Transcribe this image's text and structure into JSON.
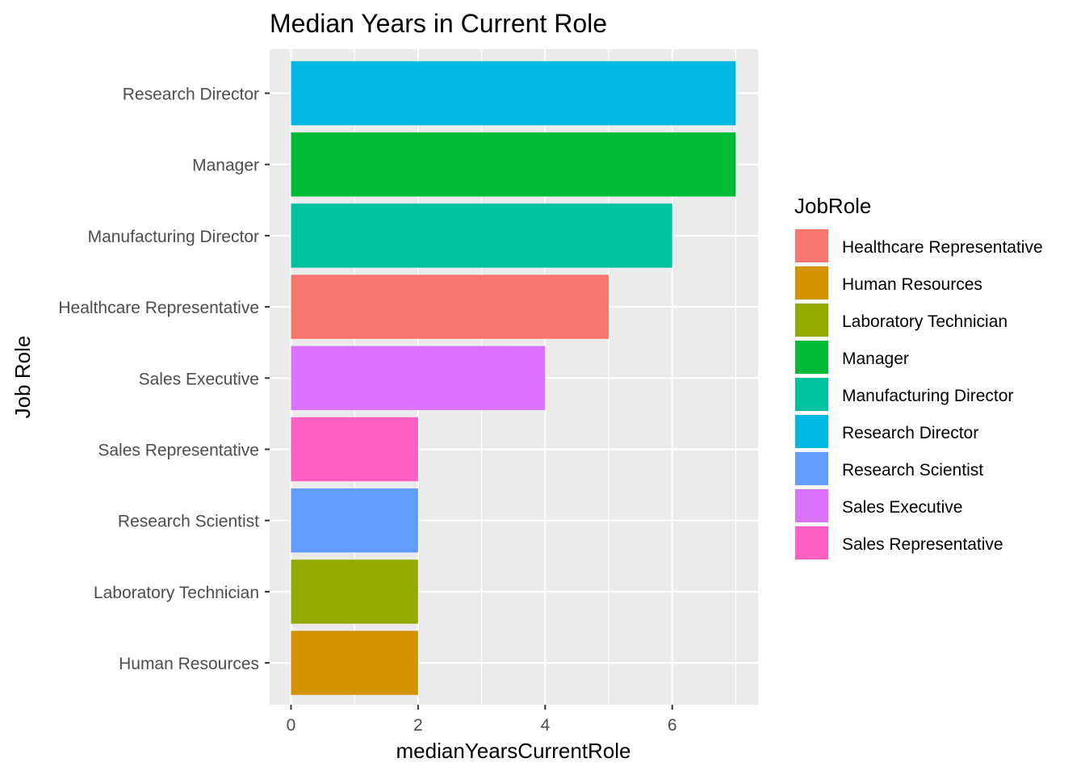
{
  "chart_data": {
    "type": "bar",
    "orientation": "horizontal",
    "title": "Median Years in Current Role",
    "xlabel": "medianYearsCurrentRole",
    "ylabel": "Job Role",
    "xlim": [
      0,
      7.35
    ],
    "xticks": [
      0,
      2,
      4,
      6
    ],
    "grid": true,
    "legend_position": "right",
    "legend_title": "JobRole",
    "categories": [
      "Research Director",
      "Manager",
      "Manufacturing Director",
      "Healthcare Representative",
      "Sales Executive",
      "Sales Representative",
      "Research Scientist",
      "Laboratory Technician",
      "Human Resources"
    ],
    "values": [
      7,
      7,
      6,
      5,
      4,
      2,
      2,
      2,
      2
    ],
    "colors": {
      "Healthcare Representative": "#F8766D",
      "Human Resources": "#D39200",
      "Laboratory Technician": "#93AA00",
      "Manager": "#00BA38",
      "Manufacturing Director": "#00C19F",
      "Research Director": "#00B9E3",
      "Research Scientist": "#619CFF",
      "Sales Executive": "#DB72FB",
      "Sales Representative": "#FF61C3"
    },
    "legend_entries": [
      "Healthcare Representative",
      "Human Resources",
      "Laboratory Technician",
      "Manager",
      "Manufacturing Director",
      "Research Director",
      "Research Scientist",
      "Sales Executive",
      "Sales Representative"
    ],
    "panel_background": "#EBEBEB",
    "grid_color": "#FFFFFF"
  }
}
